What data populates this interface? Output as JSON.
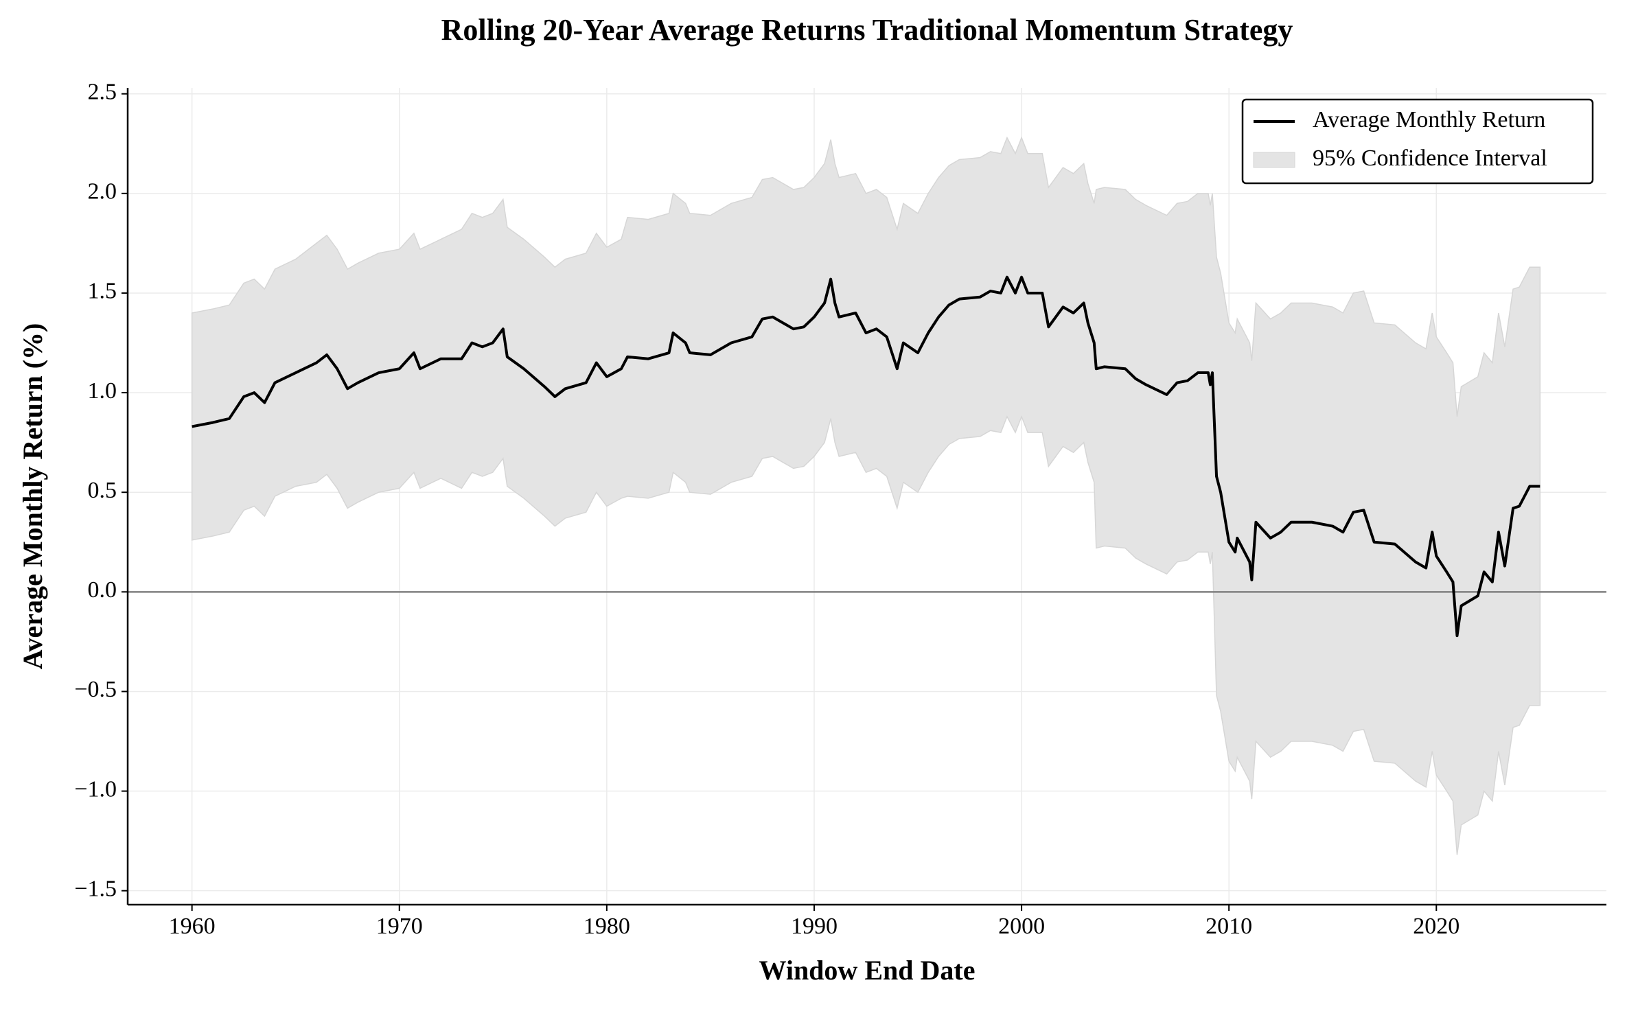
{
  "chart_data": {
    "type": "line",
    "title": "Rolling 20-Year Average Returns Traditional Momentum Strategy",
    "x_label": "Window End Date",
    "y_label": "Average Monthly Return (%)",
    "x": [
      1960,
      1961,
      1961.8,
      1962.5,
      1963,
      1963.5,
      1964,
      1965,
      1966,
      1966.5,
      1967,
      1967.5,
      1968,
      1969,
      1970,
      1970.7,
      1971,
      1972,
      1973,
      1973.5,
      1974,
      1974.5,
      1975,
      1975.2,
      1976,
      1977,
      1977.5,
      1978,
      1979,
      1979.5,
      1980,
      1980.7,
      1981,
      1982,
      1983,
      1983.2,
      1983.8,
      1984,
      1985,
      1986,
      1987,
      1987.5,
      1988,
      1989,
      1989.5,
      1990,
      1990.5,
      1990.8,
      1991,
      1991.2,
      1992,
      1992.5,
      1993,
      1993.5,
      1994,
      1994.3,
      1995,
      1995.5,
      1996,
      1996.5,
      1997,
      1998,
      1998.5,
      1999,
      1999.3,
      1999.7,
      2000,
      2000.3,
      2001,
      2001.3,
      2002,
      2002.5,
      2003,
      2003.2,
      2003.5,
      2003.6,
      2004,
      2005,
      2005.5,
      2006,
      2007,
      2007.5,
      2008,
      2008.5,
      2009,
      2009.1,
      2009.2,
      2009.4,
      2009.6,
      2010,
      2010.3,
      2010.4,
      2011,
      2011.1,
      2011.3,
      2012,
      2012.5,
      2013,
      2014,
      2015,
      2015.5,
      2016,
      2016.5,
      2017,
      2018,
      2019,
      2019.5,
      2019.8,
      2020,
      2020.5,
      2020.8,
      2021,
      2021.2,
      2022,
      2022.3,
      2022.7,
      2023,
      2023.3,
      2023.7,
      2024,
      2024.5,
      2025
    ],
    "series": [
      {
        "name": "Average Monthly Return",
        "color": "#000000",
        "values": [
          0.83,
          0.85,
          0.87,
          0.98,
          1.0,
          0.95,
          1.05,
          1.1,
          1.15,
          1.19,
          1.12,
          1.02,
          1.05,
          1.1,
          1.12,
          1.2,
          1.12,
          1.17,
          1.17,
          1.25,
          1.23,
          1.25,
          1.32,
          1.18,
          1.12,
          1.03,
          0.98,
          1.02,
          1.05,
          1.15,
          1.08,
          1.12,
          1.18,
          1.17,
          1.2,
          1.3,
          1.25,
          1.2,
          1.19,
          1.25,
          1.28,
          1.37,
          1.38,
          1.32,
          1.33,
          1.38,
          1.45,
          1.57,
          1.45,
          1.38,
          1.4,
          1.3,
          1.32,
          1.28,
          1.12,
          1.25,
          1.2,
          1.3,
          1.38,
          1.44,
          1.47,
          1.48,
          1.51,
          1.5,
          1.58,
          1.5,
          1.58,
          1.5,
          1.5,
          1.33,
          1.43,
          1.4,
          1.45,
          1.35,
          1.25,
          1.12,
          1.13,
          1.12,
          1.07,
          1.04,
          0.99,
          1.05,
          1.06,
          1.1,
          1.1,
          1.04,
          1.1,
          0.58,
          0.5,
          0.25,
          0.2,
          0.27,
          0.15,
          0.06,
          0.35,
          0.27,
          0.3,
          0.35,
          0.35,
          0.33,
          0.3,
          0.4,
          0.41,
          0.25,
          0.24,
          0.15,
          0.12,
          0.3,
          0.18,
          0.1,
          0.05,
          -0.22,
          -0.07,
          -0.02,
          0.1,
          0.05,
          0.3,
          0.13,
          0.42,
          0.43,
          0.53,
          0.53
        ]
      },
      {
        "name": "95% Confidence Interval",
        "color": "#e4e4e4",
        "upper": [
          1.4,
          1.42,
          1.44,
          1.55,
          1.57,
          1.52,
          1.62,
          1.67,
          1.75,
          1.79,
          1.72,
          1.62,
          1.65,
          1.7,
          1.72,
          1.8,
          1.72,
          1.77,
          1.82,
          1.9,
          1.88,
          1.9,
          1.97,
          1.83,
          1.77,
          1.68,
          1.63,
          1.67,
          1.7,
          1.8,
          1.73,
          1.77,
          1.88,
          1.87,
          1.9,
          2.0,
          1.95,
          1.9,
          1.89,
          1.95,
          1.98,
          2.07,
          2.08,
          2.02,
          2.03,
          2.08,
          2.15,
          2.27,
          2.15,
          2.08,
          2.1,
          2.0,
          2.02,
          1.98,
          1.82,
          1.95,
          1.9,
          2.0,
          2.08,
          2.14,
          2.17,
          2.18,
          2.21,
          2.2,
          2.28,
          2.2,
          2.28,
          2.2,
          2.2,
          2.03,
          2.13,
          2.1,
          2.15,
          2.05,
          1.95,
          2.02,
          2.03,
          2.02,
          1.97,
          1.94,
          1.89,
          1.95,
          1.96,
          2.0,
          2.0,
          1.94,
          2.0,
          1.68,
          1.6,
          1.35,
          1.3,
          1.37,
          1.25,
          1.16,
          1.45,
          1.37,
          1.4,
          1.45,
          1.45,
          1.43,
          1.4,
          1.5,
          1.51,
          1.35,
          1.34,
          1.25,
          1.22,
          1.4,
          1.28,
          1.2,
          1.15,
          0.88,
          1.03,
          1.08,
          1.2,
          1.15,
          1.4,
          1.23,
          1.52,
          1.53,
          1.63,
          1.63
        ],
        "lower": [
          0.26,
          0.28,
          0.3,
          0.41,
          0.43,
          0.38,
          0.48,
          0.53,
          0.55,
          0.59,
          0.52,
          0.42,
          0.45,
          0.5,
          0.52,
          0.6,
          0.52,
          0.57,
          0.52,
          0.6,
          0.58,
          0.6,
          0.67,
          0.53,
          0.47,
          0.38,
          0.33,
          0.37,
          0.4,
          0.5,
          0.43,
          0.47,
          0.48,
          0.47,
          0.5,
          0.6,
          0.55,
          0.5,
          0.49,
          0.55,
          0.58,
          0.67,
          0.68,
          0.62,
          0.63,
          0.68,
          0.75,
          0.87,
          0.75,
          0.68,
          0.7,
          0.6,
          0.62,
          0.58,
          0.42,
          0.55,
          0.5,
          0.6,
          0.68,
          0.74,
          0.77,
          0.78,
          0.81,
          0.8,
          0.88,
          0.8,
          0.88,
          0.8,
          0.8,
          0.63,
          0.73,
          0.7,
          0.75,
          0.65,
          0.55,
          0.22,
          0.23,
          0.22,
          0.17,
          0.14,
          0.09,
          0.15,
          0.16,
          0.2,
          0.2,
          0.14,
          0.2,
          -0.52,
          -0.6,
          -0.85,
          -0.9,
          -0.83,
          -0.95,
          -1.04,
          -0.75,
          -0.83,
          -0.8,
          -0.75,
          -0.75,
          -0.77,
          -0.8,
          -0.7,
          -0.69,
          -0.85,
          -0.86,
          -0.95,
          -0.98,
          -0.8,
          -0.92,
          -1.0,
          -1.05,
          -1.32,
          -1.17,
          -1.12,
          -1.0,
          -1.05,
          -0.8,
          -0.97,
          -0.68,
          -0.67,
          -0.57,
          -0.57
        ]
      }
    ],
    "reference_line": 0,
    "xlim": [
      1956.9,
      2028.2
    ],
    "ylim": [
      -1.57,
      2.53
    ],
    "xticks": [
      1960,
      1970,
      1980,
      1990,
      2000,
      2010,
      2020
    ],
    "yticks": [
      {
        "value": -1.5,
        "label": "−1.5"
      },
      {
        "value": -1.0,
        "label": "−1.0"
      },
      {
        "value": -0.5,
        "label": "−0.5"
      },
      {
        "value": 0,
        "label": "0.0"
      },
      0.5,
      {
        "value": 1.0,
        "label": "1.0"
      },
      1.5,
      {
        "value": 2.0,
        "label": "2.0"
      },
      2.5
    ],
    "grid": true,
    "legend": "upper right"
  }
}
